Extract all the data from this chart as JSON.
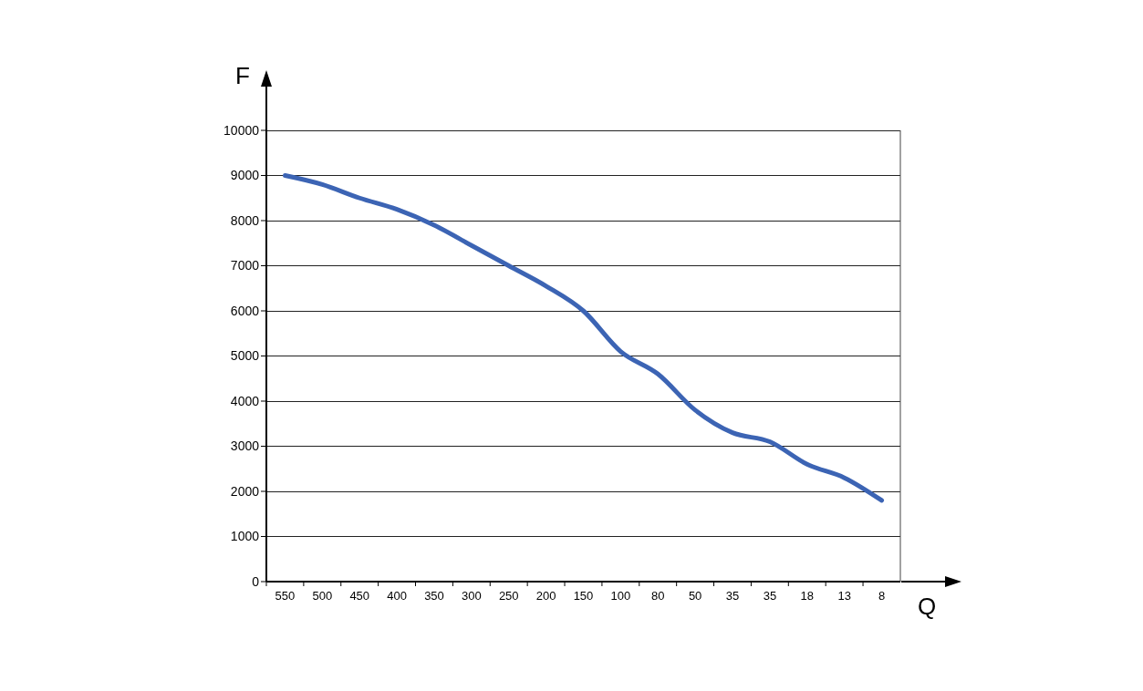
{
  "chart_data": {
    "type": "line",
    "xlabel": "Q",
    "ylabel": "F",
    "categories": [
      "550",
      "500",
      "450",
      "400",
      "350",
      "300",
      "250",
      "200",
      "150",
      "100",
      "80",
      "50",
      "35",
      "35",
      "18",
      "13",
      "8"
    ],
    "series": [
      {
        "color": "#3c64b4",
        "values": [
          9000,
          8800,
          8500,
          8250,
          7900,
          7450,
          7000,
          6550,
          6000,
          5100,
          4600,
          3800,
          3300,
          3100,
          2600,
          2300,
          1800
        ]
      }
    ],
    "ylim": [
      0,
      10000
    ],
    "yticks": [
      0,
      1000,
      2000,
      3000,
      4000,
      5000,
      6000,
      7000,
      8000,
      9000,
      10000
    ],
    "grid": "y",
    "legend": false,
    "marker": "none",
    "line_style": "solid"
  }
}
